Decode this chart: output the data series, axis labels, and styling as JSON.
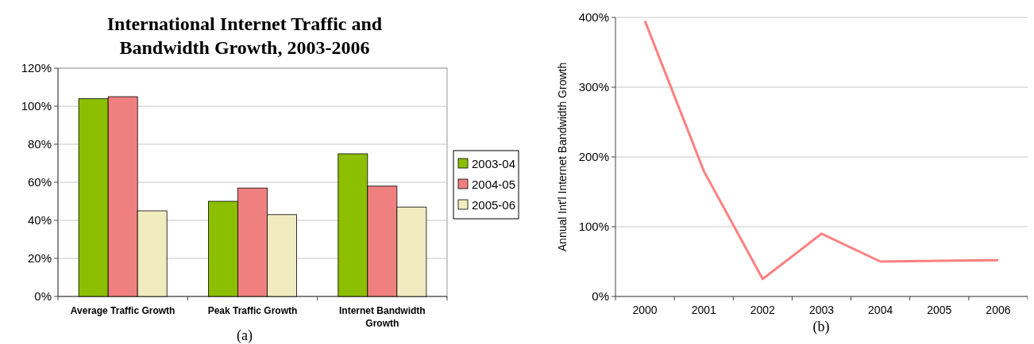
{
  "chart_data": [
    {
      "type": "bar",
      "title": "International Internet Traffic and Bandwidth Growth, 2003-2006",
      "categories": [
        "Average Traffic Growth",
        "Peak Traffic Growth",
        "Internet Bandwidth Growth"
      ],
      "series": [
        {
          "name": "2003-04",
          "color": "#8cbf00",
          "values": [
            104,
            50,
            75
          ]
        },
        {
          "name": "2004-05",
          "color": "#f08080",
          "values": [
            105,
            57,
            58
          ]
        },
        {
          "name": "2005-06",
          "color": "#f0ecc0",
          "values": [
            45,
            43,
            47
          ]
        }
      ],
      "ylim": [
        0,
        120
      ],
      "yticks": [
        {
          "value": 0,
          "label": "0%"
        },
        {
          "value": 20,
          "label": "20%"
        },
        {
          "value": 40,
          "label": "40%"
        },
        {
          "value": 60,
          "label": "60%"
        },
        {
          "value": 80,
          "label": "80%"
        },
        {
          "value": 100,
          "label": "100%"
        },
        {
          "value": 120,
          "label": "120%"
        }
      ],
      "grid": "y",
      "legend": "right",
      "annotations": [
        "(a)"
      ]
    },
    {
      "type": "line",
      "ylabel": "Annual Int'l Internet Bandwidth Growth",
      "categories": [
        "2000",
        "2001",
        "2002",
        "2003",
        "2004",
        "2005",
        "2006"
      ],
      "series": [
        {
          "color": "#ff8080",
          "values": [
            395,
            180,
            25,
            90,
            50,
            51,
            52
          ]
        }
      ],
      "ylim": [
        0,
        400
      ],
      "yticks": [
        {
          "value": 0,
          "label": "0%"
        },
        {
          "value": 100,
          "label": "100%"
        },
        {
          "value": 200,
          "label": "200%"
        },
        {
          "value": 300,
          "label": "300%"
        },
        {
          "value": 400,
          "label": "400%"
        }
      ],
      "grid": "y",
      "legend": false,
      "marker": "none",
      "line_style": "solid",
      "annotations": [
        "(b)"
      ]
    }
  ]
}
